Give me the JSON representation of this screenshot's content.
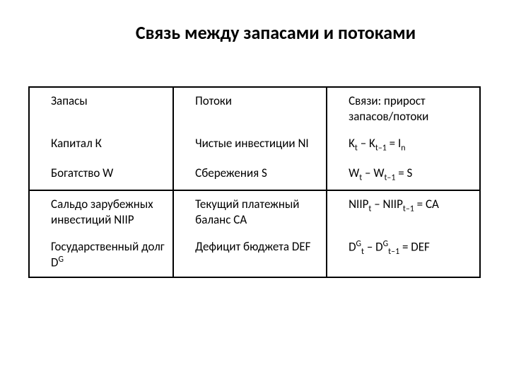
{
  "title": "Связь между запасами и потоками",
  "table": {
    "header": {
      "stocks": "Запасы",
      "flows": "Потоки",
      "relations": "Связи: прирост запасов/потоки"
    },
    "rows": [
      {
        "stock": "Капитал К",
        "flow": "Чистые инвестиции NI",
        "relation_parts": [
          "K",
          "t",
          " – K",
          "t–1",
          " = I",
          "n"
        ]
      },
      {
        "stock": "Богатство W",
        "flow": "Сбережения S",
        "relation_parts": [
          "W",
          "t",
          " – W",
          "t–1",
          " = S"
        ]
      },
      {
        "stock": "Сальдо зарубежных инвестиций NIIP",
        "flow": "Текущий платежный баланс CA",
        "relation_parts": [
          "NIIP",
          "t",
          " – NIIP",
          "t–1",
          " = CA"
        ]
      },
      {
        "stock_parts": [
          "Государственный долг D",
          "G"
        ],
        "flow": "Дефицит бюджета DEF",
        "relation_parts": [
          "D",
          "G",
          "t",
          " – D",
          "G",
          "t–1",
          " = DEF"
        ]
      }
    ]
  },
  "styling": {
    "background_color": "#ffffff",
    "text_color": "#000000",
    "border_color": "#000000",
    "title_fontsize": 26,
    "cell_fontsize": 17,
    "font_family": "Calibri"
  }
}
